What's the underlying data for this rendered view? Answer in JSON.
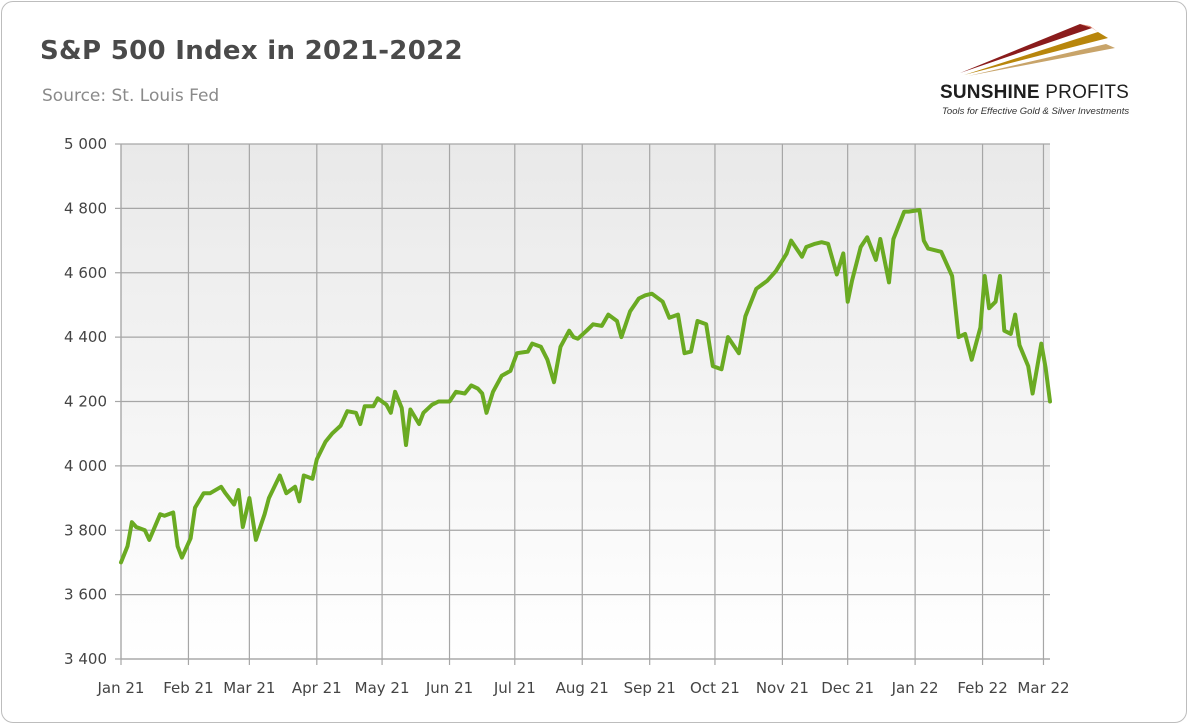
{
  "header": {
    "title": "S&P 500 Index in 2021-2022",
    "subtitle": "Source: St. Louis Fed"
  },
  "logo": {
    "brand_bold": "SUNSHINE",
    "brand_light": " PROFITS",
    "tagline": "Tools for Effective Gold & Silver Investments"
  },
  "colors": {
    "series": "#6aaa22",
    "gridline": "#a6a6a6",
    "plot_bg_top": "#e9e9e9",
    "plot_bg_bottom": "#ffffff"
  },
  "chart_data": {
    "type": "line",
    "title": "S&P 500 Index in 2021-2022",
    "subtitle": "Source: St. Louis Fed",
    "ylim": [
      3400,
      5000
    ],
    "yticks": [
      3400,
      3600,
      3800,
      4000,
      4200,
      4400,
      4600,
      4800,
      5000
    ],
    "ytick_labels": [
      "3 400",
      "3 600",
      "3 800",
      "4 000",
      "4 200",
      "4 400",
      "4 600",
      "4 800",
      "5 000"
    ],
    "xlim": [
      "2021-01-01",
      "2022-03-04"
    ],
    "xticks": [
      "2021-01-01",
      "2021-02-01",
      "2021-03-01",
      "2021-04-01",
      "2021-05-01",
      "2021-06-01",
      "2021-07-01",
      "2021-08-01",
      "2021-09-01",
      "2021-10-01",
      "2021-11-01",
      "2021-12-01",
      "2022-01-01",
      "2022-02-01",
      "2022-03-01"
    ],
    "xtick_labels": [
      "Jan 21",
      "Feb 21",
      "Mar 21",
      "Apr 21",
      "May 21",
      "Jun 21",
      "Jul 21",
      "Aug 21",
      "Sep 21",
      "Oct 21",
      "Nov 21",
      "Dec 21",
      "Jan 22",
      "Feb 22",
      "Mar 22"
    ],
    "grid": true,
    "legend": "none",
    "series": [
      {
        "x": [
          "2021-01-01",
          "2021-01-04",
          "2021-01-06",
          "2021-01-08",
          "2021-01-12",
          "2021-01-14",
          "2021-01-19",
          "2021-01-21",
          "2021-01-25",
          "2021-01-27",
          "2021-01-29",
          "2021-02-02",
          "2021-02-04",
          "2021-02-08",
          "2021-02-11",
          "2021-02-16",
          "2021-02-18",
          "2021-02-22",
          "2021-02-24",
          "2021-02-26",
          "2021-03-01",
          "2021-03-04",
          "2021-03-08",
          "2021-03-10",
          "2021-03-15",
          "2021-03-18",
          "2021-03-22",
          "2021-03-24",
          "2021-03-26",
          "2021-03-30",
          "2021-04-01",
          "2021-04-05",
          "2021-04-08",
          "2021-04-12",
          "2021-04-15",
          "2021-04-19",
          "2021-04-21",
          "2021-04-23",
          "2021-04-27",
          "2021-04-29",
          "2021-05-03",
          "2021-05-05",
          "2021-05-07",
          "2021-05-10",
          "2021-05-12",
          "2021-05-14",
          "2021-05-18",
          "2021-05-20",
          "2021-05-24",
          "2021-05-27",
          "2021-06-01",
          "2021-06-04",
          "2021-06-08",
          "2021-06-11",
          "2021-06-14",
          "2021-06-16",
          "2021-06-18",
          "2021-06-21",
          "2021-06-25",
          "2021-06-29",
          "2021-07-02",
          "2021-07-07",
          "2021-07-09",
          "2021-07-13",
          "2021-07-16",
          "2021-07-19",
          "2021-07-22",
          "2021-07-26",
          "2021-07-28",
          "2021-07-30",
          "2021-08-03",
          "2021-08-06",
          "2021-08-10",
          "2021-08-13",
          "2021-08-17",
          "2021-08-19",
          "2021-08-23",
          "2021-08-27",
          "2021-08-30",
          "2021-09-02",
          "2021-09-07",
          "2021-09-10",
          "2021-09-14",
          "2021-09-17",
          "2021-09-20",
          "2021-09-23",
          "2021-09-27",
          "2021-09-30",
          "2021-10-04",
          "2021-10-07",
          "2021-10-12",
          "2021-10-15",
          "2021-10-20",
          "2021-10-25",
          "2021-10-29",
          "2021-11-03",
          "2021-11-05",
          "2021-11-10",
          "2021-11-12",
          "2021-11-16",
          "2021-11-19",
          "2021-11-22",
          "2021-11-26",
          "2021-11-29",
          "2021-12-01",
          "2021-12-03",
          "2021-12-07",
          "2021-12-10",
          "2021-12-14",
          "2021-12-16",
          "2021-12-20",
          "2021-12-22",
          "2021-12-27",
          "2021-12-29",
          "2022-01-03",
          "2022-01-05",
          "2022-01-07",
          "2022-01-10",
          "2022-01-13",
          "2022-01-18",
          "2022-01-21",
          "2022-01-24",
          "2022-01-27",
          "2022-01-31",
          "2022-02-02",
          "2022-02-04",
          "2022-02-07",
          "2022-02-09",
          "2022-02-11",
          "2022-02-14",
          "2022-02-16",
          "2022-02-18",
          "2022-02-22",
          "2022-02-24",
          "2022-02-28",
          "2022-03-02",
          "2022-03-04"
        ],
        "values": [
          3700,
          3750,
          3825,
          3810,
          3800,
          3770,
          3850,
          3845,
          3855,
          3750,
          3715,
          3775,
          3870,
          3915,
          3915,
          3935,
          3915,
          3880,
          3925,
          3810,
          3900,
          3770,
          3850,
          3900,
          3970,
          3915,
          3935,
          3890,
          3970,
          3960,
          4020,
          4075,
          4100,
          4125,
          4170,
          4165,
          4130,
          4185,
          4185,
          4210,
          4190,
          4165,
          4230,
          4180,
          4065,
          4175,
          4130,
          4165,
          4190,
          4200,
          4200,
          4230,
          4225,
          4250,
          4240,
          4225,
          4165,
          4230,
          4280,
          4295,
          4350,
          4355,
          4380,
          4370,
          4330,
          4260,
          4370,
          4420,
          4400,
          4395,
          4420,
          4440,
          4435,
          4470,
          4450,
          4400,
          4480,
          4520,
          4530,
          4535,
          4510,
          4460,
          4470,
          4350,
          4355,
          4450,
          4440,
          4310,
          4300,
          4400,
          4350,
          4465,
          4550,
          4575,
          4605,
          4660,
          4700,
          4650,
          4680,
          4690,
          4695,
          4690,
          4595,
          4660,
          4510,
          4575,
          4680,
          4710,
          4640,
          4705,
          4570,
          4705,
          4790,
          4790,
          4795,
          4700,
          4675,
          4670,
          4665,
          4590,
          4400,
          4410,
          4330,
          4430,
          4590,
          4490,
          4510,
          4590,
          4420,
          4410,
          4470,
          4375,
          4310,
          4225,
          4380,
          4305,
          4200
        ]
      }
    ]
  }
}
